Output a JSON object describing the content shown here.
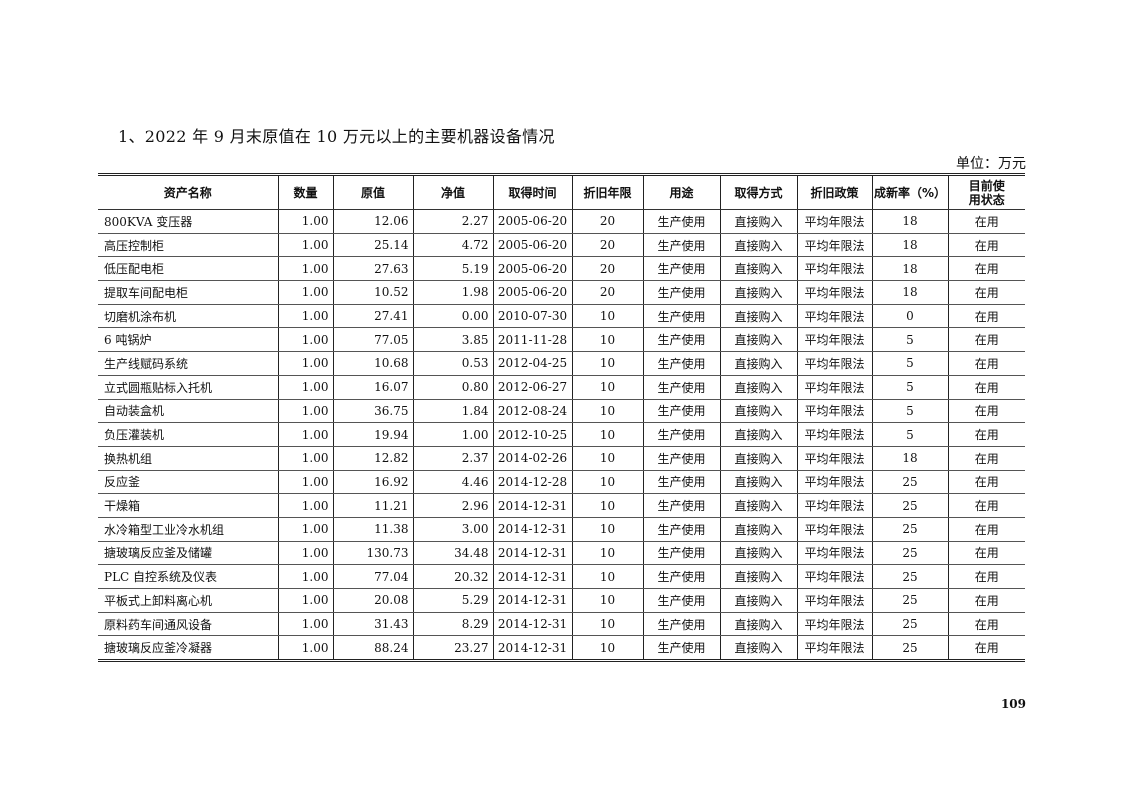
{
  "title": "1、2022 年 9 月末原值在 10 万元以上的主要机器设备情况",
  "unit": "单位：万元",
  "table": {
    "headers": [
      "资产名称",
      "数量",
      "原值",
      "净值",
      "取得时间",
      "折旧年限",
      "用途",
      "取得方式",
      "折旧政策",
      "成新率（%）",
      "目前使\n用状态"
    ],
    "rows": [
      [
        "800KVA 变压器",
        "1.00",
        "12.06",
        "2.27",
        "2005-06-20",
        "20",
        "生产使用",
        "直接购入",
        "平均年限法",
        "18",
        "在用"
      ],
      [
        "高压控制柜",
        "1.00",
        "25.14",
        "4.72",
        "2005-06-20",
        "20",
        "生产使用",
        "直接购入",
        "平均年限法",
        "18",
        "在用"
      ],
      [
        "低压配电柜",
        "1.00",
        "27.63",
        "5.19",
        "2005-06-20",
        "20",
        "生产使用",
        "直接购入",
        "平均年限法",
        "18",
        "在用"
      ],
      [
        "提取车间配电柜",
        "1.00",
        "10.52",
        "1.98",
        "2005-06-20",
        "20",
        "生产使用",
        "直接购入",
        "平均年限法",
        "18",
        "在用"
      ],
      [
        "切磨机涂布机",
        "1.00",
        "27.41",
        "0.00",
        "2010-07-30",
        "10",
        "生产使用",
        "直接购入",
        "平均年限法",
        "0",
        "在用"
      ],
      [
        "6 吨锅炉",
        "1.00",
        "77.05",
        "3.85",
        "2011-11-28",
        "10",
        "生产使用",
        "直接购入",
        "平均年限法",
        "5",
        "在用"
      ],
      [
        "生产线赋码系统",
        "1.00",
        "10.68",
        "0.53",
        "2012-04-25",
        "10",
        "生产使用",
        "直接购入",
        "平均年限法",
        "5",
        "在用"
      ],
      [
        "立式圆瓶贴标入托机",
        "1.00",
        "16.07",
        "0.80",
        "2012-06-27",
        "10",
        "生产使用",
        "直接购入",
        "平均年限法",
        "5",
        "在用"
      ],
      [
        "自动装盒机",
        "1.00",
        "36.75",
        "1.84",
        "2012-08-24",
        "10",
        "生产使用",
        "直接购入",
        "平均年限法",
        "5",
        "在用"
      ],
      [
        "负压灌装机",
        "1.00",
        "19.94",
        "1.00",
        "2012-10-25",
        "10",
        "生产使用",
        "直接购入",
        "平均年限法",
        "5",
        "在用"
      ],
      [
        "换热机组",
        "1.00",
        "12.82",
        "2.37",
        "2014-02-26",
        "10",
        "生产使用",
        "直接购入",
        "平均年限法",
        "18",
        "在用"
      ],
      [
        "反应釜",
        "1.00",
        "16.92",
        "4.46",
        "2014-12-28",
        "10",
        "生产使用",
        "直接购入",
        "平均年限法",
        "25",
        "在用"
      ],
      [
        "干燥箱",
        "1.00",
        "11.21",
        "2.96",
        "2014-12-31",
        "10",
        "生产使用",
        "直接购入",
        "平均年限法",
        "25",
        "在用"
      ],
      [
        "水冷箱型工业冷水机组",
        "1.00",
        "11.38",
        "3.00",
        "2014-12-31",
        "10",
        "生产使用",
        "直接购入",
        "平均年限法",
        "25",
        "在用"
      ],
      [
        "搪玻璃反应釜及储罐",
        "1.00",
        "130.73",
        "34.48",
        "2014-12-31",
        "10",
        "生产使用",
        "直接购入",
        "平均年限法",
        "25",
        "在用"
      ],
      [
        "PLC 自控系统及仪表",
        "1.00",
        "77.04",
        "20.32",
        "2014-12-31",
        "10",
        "生产使用",
        "直接购入",
        "平均年限法",
        "25",
        "在用"
      ],
      [
        "平板式上卸料离心机",
        "1.00",
        "20.08",
        "5.29",
        "2014-12-31",
        "10",
        "生产使用",
        "直接购入",
        "平均年限法",
        "25",
        "在用"
      ],
      [
        "原料药车间通风设备",
        "1.00",
        "31.43",
        "8.29",
        "2014-12-31",
        "10",
        "生产使用",
        "直接购入",
        "平均年限法",
        "25",
        "在用"
      ],
      [
        "搪玻璃反应釜冷凝器",
        "1.00",
        "88.24",
        "23.27",
        "2014-12-31",
        "10",
        "生产使用",
        "直接购入",
        "平均年限法",
        "25",
        "在用"
      ]
    ]
  },
  "page_number": "109"
}
